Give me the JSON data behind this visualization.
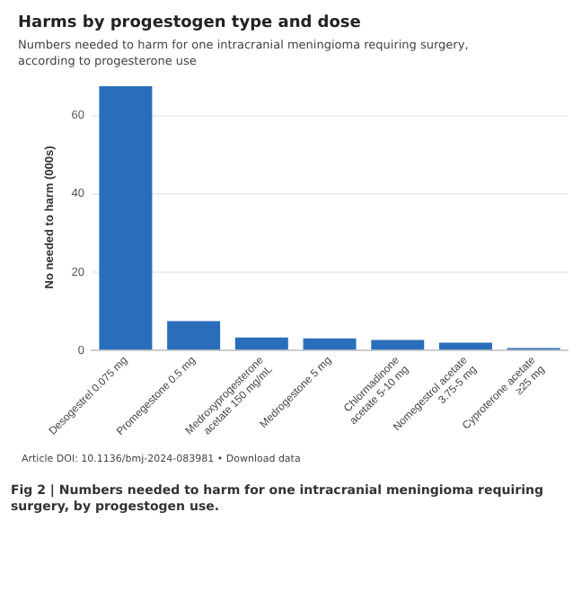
{
  "chart_data": {
    "type": "bar",
    "title": "Harms by progestogen type and dose",
    "subtitle": "Numbers needed to harm for one intracranial meningioma requiring surgery, according to progesterone use",
    "ylabel": "No needed to harm (000s)",
    "categories": [
      "Desogestrel 0.075 mg",
      "Promegestone 0.5 mg",
      "Medroxyprogesterone acetate 150 mg/mL",
      "Medrogestone 5 mg",
      "Chlormadinone acetate 5-10 mg",
      "Nomegestrol acetate 3.75-5 mg",
      "Cyproterone acetate ≥25 mg"
    ],
    "values": [
      67.5,
      7.5,
      3.3,
      3.1,
      2.7,
      2.0,
      0.6
    ],
    "color": "#2a6ebb",
    "ylim": [
      0,
      68
    ],
    "yticks": [
      0,
      20,
      40,
      60
    ],
    "grid": "y",
    "annotations": [
      "Article DOI: 10.1136/bmj-2024-083981 • Download data",
      "Fig 2 | Numbers needed to harm for one intracranial meningioma requiring surgery, by progestogen use."
    ]
  }
}
